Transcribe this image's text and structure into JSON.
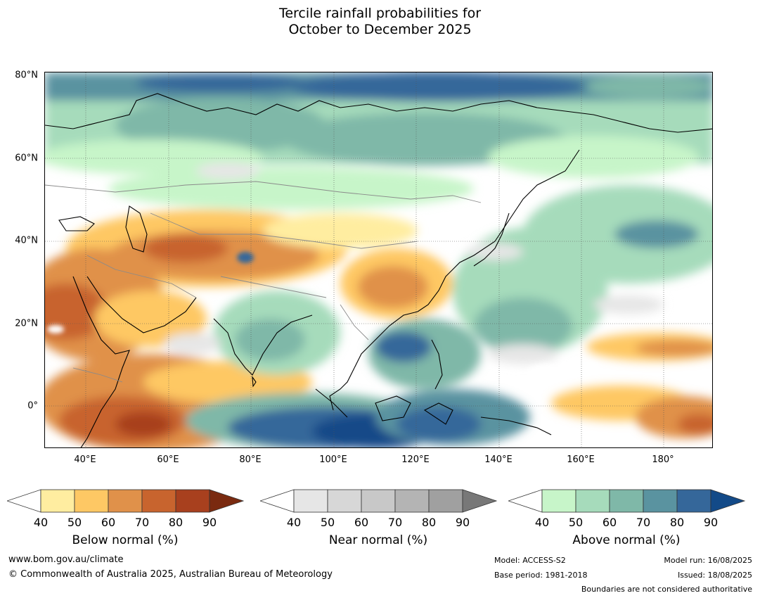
{
  "title_line1": "Tercile rainfall probabilities for",
  "title_line2": "October to December 2025",
  "lat_labels": [
    "80°N",
    "60°N",
    "40°N",
    "20°N",
    "0°"
  ],
  "lon_labels": [
    "40°E",
    "60°E",
    "80°E",
    "100°E",
    "120°E",
    "140°E",
    "160°E",
    "180°"
  ],
  "colorbars": {
    "below": {
      "title": "Below normal (%)",
      "ticks": [
        "40",
        "50",
        "60",
        "70",
        "80",
        "90"
      ],
      "colors": [
        "#ffffff",
        "#ffeda0",
        "#fec864",
        "#e0914a",
        "#c8642e",
        "#a8401e",
        "#7a2a10"
      ]
    },
    "near": {
      "title": "Near normal (%)",
      "ticks": [
        "40",
        "50",
        "60",
        "70",
        "80",
        "90"
      ],
      "colors": [
        "#ffffff",
        "#e6e6e6",
        "#d7d7d7",
        "#c8c8c8",
        "#b4b4b4",
        "#a0a0a0",
        "#787878"
      ]
    },
    "above": {
      "title": "Above normal (%)",
      "ticks": [
        "40",
        "50",
        "60",
        "70",
        "80",
        "90"
      ],
      "colors": [
        "#ffffff",
        "#c7f5c9",
        "#a6dbbb",
        "#7fb8a8",
        "#5a93a0",
        "#35679a",
        "#134a88"
      ]
    }
  },
  "footer": {
    "website": "www.bom.gov.au/climate",
    "copyright": "© Commonwealth of Australia 2025, Australian Bureau of Meteorology",
    "model": "Model: ACCESS-S2",
    "base_period": "Base period: 1981-2018",
    "model_run": "Model run: 16/08/2025",
    "issued": "Issued: 18/08/2025",
    "disclaimer": "Boundaries are not considered authoritative"
  }
}
